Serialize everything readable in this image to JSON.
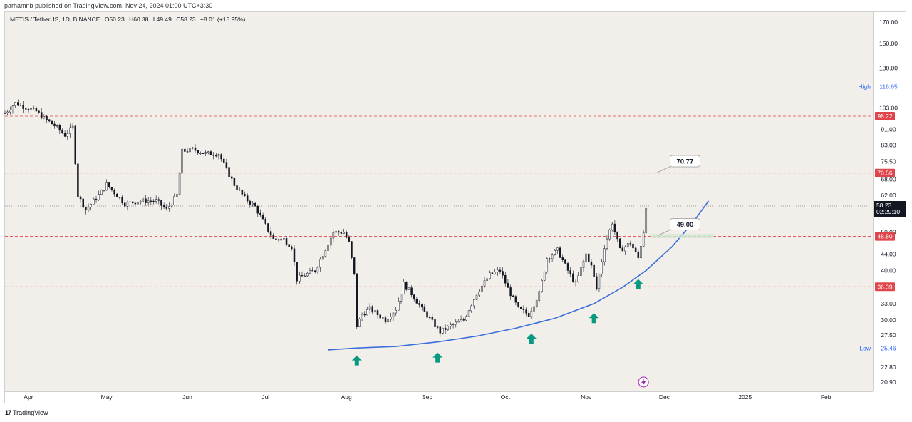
{
  "header": {
    "publisher": "parhamnb published on TradingView.com, Nov 24, 2024 01:00 UTC+3:30",
    "symbol": "METIS / TetherUS, 1D, BINANCE",
    "open": "O50.23",
    "high": "H60.38",
    "low": "L49.49",
    "close": "C58.23",
    "change": "+8.01 (+15.95%)"
  },
  "footer": {
    "brand": "TradingView",
    "brand_glyph": "17"
  },
  "colors": {
    "background": "#f2efea",
    "up": "#131722",
    "down": "#131722",
    "level_line": "#e0454b",
    "trend_curve": "#3a6fdb",
    "arrow": "#089981",
    "high_label": "#2962ff"
  },
  "chart_data": {
    "type": "candlestick",
    "title": "METIS / TetherUS, 1D, BINANCE",
    "y_scale": "log",
    "ylim": [
      19.8,
      180
    ],
    "y_ticks": [
      "170.00",
      "150.00",
      "130.00",
      "103.00",
      "91.00",
      "83.00",
      "75.50",
      "68.00",
      "62.00",
      "50.00",
      "44.00",
      "40.00",
      "33.00",
      "30.00",
      "27.50",
      "22.80",
      "20.90"
    ],
    "x_ticks": [
      {
        "label": "Apr",
        "date": "2024-04-01"
      },
      {
        "label": "May",
        "date": "2024-05-01"
      },
      {
        "label": "Jun",
        "date": "2024-06-01"
      },
      {
        "label": "Jul",
        "date": "2024-07-01"
      },
      {
        "label": "Aug",
        "date": "2024-08-01"
      },
      {
        "label": "Sep",
        "date": "2024-09-01"
      },
      {
        "label": "Oct",
        "date": "2024-10-01"
      },
      {
        "label": "Nov",
        "date": "2024-11-01"
      },
      {
        "label": "Dec",
        "date": "2024-12-01"
      },
      {
        "label": "2025",
        "date": "2025-01-01"
      },
      {
        "label": "Feb",
        "date": "2025-02-01"
      }
    ],
    "xlim": [
      "2024-03-23",
      "2025-02-19"
    ],
    "high_marker": {
      "label": "High",
      "value": "116.65"
    },
    "low_marker": {
      "label": "Low",
      "value": "25.46"
    },
    "horizontal_levels": [
      {
        "value": 98.22,
        "label": "98.22"
      },
      {
        "value": 70.56,
        "label": "70.56"
      },
      {
        "value": 48.8,
        "label": "48.80"
      },
      {
        "value": 36.39,
        "label": "36.39"
      }
    ],
    "current_price": {
      "value": 58.23,
      "label": "58.23",
      "countdown": "02:29:10"
    },
    "callouts": [
      {
        "label": "70.77",
        "value": 70.77,
        "date": "2024-12-01"
      },
      {
        "label": "49.00",
        "value": 49.0,
        "date": "2024-12-01"
      }
    ],
    "target_zone": {
      "from_date": "2024-11-26",
      "to_date": "2024-12-20",
      "value": 48.9
    },
    "support_curve": [
      {
        "date": "2024-07-25",
        "value": 25.2
      },
      {
        "date": "2024-08-04",
        "value": 25.46
      },
      {
        "date": "2024-08-20",
        "value": 25.7
      },
      {
        "date": "2024-09-05",
        "value": 26.4
      },
      {
        "date": "2024-09-20",
        "value": 27.3
      },
      {
        "date": "2024-10-05",
        "value": 28.6
      },
      {
        "date": "2024-10-20",
        "value": 30.3
      },
      {
        "date": "2024-11-04",
        "value": 33.0
      },
      {
        "date": "2024-11-15",
        "value": 36.3
      },
      {
        "date": "2024-11-24",
        "value": 40.0
      },
      {
        "date": "2024-12-04",
        "value": 46.0
      },
      {
        "date": "2024-12-12",
        "value": 53.0
      },
      {
        "date": "2024-12-18",
        "value": 60.0
      }
    ],
    "arrows": [
      {
        "date": "2024-08-05",
        "value": 23.6
      },
      {
        "date": "2024-09-05",
        "value": 24.0
      },
      {
        "date": "2024-10-11",
        "value": 26.8
      },
      {
        "date": "2024-11-04",
        "value": 30.2
      },
      {
        "date": "2024-11-21",
        "value": 36.8
      }
    ],
    "lightning_marker": {
      "date": "2024-11-23",
      "value": 20.9
    },
    "anchors": [
      {
        "date": "2024-03-23",
        "value": 100
      },
      {
        "date": "2024-03-27",
        "value": 106
      },
      {
        "date": "2024-03-30",
        "value": 104
      },
      {
        "date": "2024-04-04",
        "value": 101
      },
      {
        "date": "2024-04-07",
        "value": 97
      },
      {
        "date": "2024-04-11",
        "value": 93
      },
      {
        "date": "2024-04-15",
        "value": 88
      },
      {
        "date": "2024-04-18",
        "value": 92
      },
      {
        "date": "2024-04-20",
        "value": 62
      },
      {
        "date": "2024-04-23",
        "value": 57
      },
      {
        "date": "2024-04-28",
        "value": 62
      },
      {
        "date": "2024-05-01",
        "value": 66
      },
      {
        "date": "2024-05-05",
        "value": 62
      },
      {
        "date": "2024-05-08",
        "value": 59
      },
      {
        "date": "2024-05-14",
        "value": 60
      },
      {
        "date": "2024-05-20",
        "value": 60
      },
      {
        "date": "2024-05-24",
        "value": 57
      },
      {
        "date": "2024-05-28",
        "value": 62
      },
      {
        "date": "2024-05-30",
        "value": 80
      },
      {
        "date": "2024-06-03",
        "value": 81
      },
      {
        "date": "2024-06-08",
        "value": 79
      },
      {
        "date": "2024-06-13",
        "value": 79
      },
      {
        "date": "2024-06-16",
        "value": 72
      },
      {
        "date": "2024-06-19",
        "value": 66
      },
      {
        "date": "2024-06-23",
        "value": 61
      },
      {
        "date": "2024-06-27",
        "value": 58
      },
      {
        "date": "2024-07-01",
        "value": 52
      },
      {
        "date": "2024-07-04",
        "value": 48
      },
      {
        "date": "2024-07-08",
        "value": 48
      },
      {
        "date": "2024-07-11",
        "value": 46
      },
      {
        "date": "2024-07-13",
        "value": 38
      },
      {
        "date": "2024-07-16",
        "value": 39
      },
      {
        "date": "2024-07-20",
        "value": 40
      },
      {
        "date": "2024-07-23",
        "value": 44
      },
      {
        "date": "2024-07-27",
        "value": 50
      },
      {
        "date": "2024-07-31",
        "value": 50
      },
      {
        "date": "2024-08-02",
        "value": 47
      },
      {
        "date": "2024-08-04",
        "value": 39
      },
      {
        "date": "2024-08-05",
        "value": 29
      },
      {
        "date": "2024-08-07",
        "value": 31
      },
      {
        "date": "2024-08-10",
        "value": 32
      },
      {
        "date": "2024-08-16",
        "value": 30
      },
      {
        "date": "2024-08-20",
        "value": 32
      },
      {
        "date": "2024-08-23",
        "value": 37
      },
      {
        "date": "2024-08-26",
        "value": 35
      },
      {
        "date": "2024-08-30",
        "value": 32
      },
      {
        "date": "2024-09-06",
        "value": 28
      },
      {
        "date": "2024-09-10",
        "value": 29
      },
      {
        "date": "2024-09-15",
        "value": 30
      },
      {
        "date": "2024-09-20",
        "value": 35
      },
      {
        "date": "2024-09-25",
        "value": 39
      },
      {
        "date": "2024-09-29",
        "value": 40
      },
      {
        "date": "2024-10-02",
        "value": 36
      },
      {
        "date": "2024-10-06",
        "value": 32
      },
      {
        "date": "2024-10-10",
        "value": 31
      },
      {
        "date": "2024-10-14",
        "value": 35
      },
      {
        "date": "2024-10-17",
        "value": 43
      },
      {
        "date": "2024-10-21",
        "value": 45
      },
      {
        "date": "2024-10-25",
        "value": 40
      },
      {
        "date": "2024-10-28",
        "value": 37
      },
      {
        "date": "2024-11-01",
        "value": 44
      },
      {
        "date": "2024-11-03",
        "value": 41
      },
      {
        "date": "2024-11-05",
        "value": 36
      },
      {
        "date": "2024-11-08",
        "value": 46
      },
      {
        "date": "2024-11-11",
        "value": 53
      },
      {
        "date": "2024-11-14",
        "value": 45
      },
      {
        "date": "2024-11-18",
        "value": 47
      },
      {
        "date": "2024-11-21",
        "value": 43
      },
      {
        "date": "2024-11-23",
        "value": 50.23
      },
      {
        "date": "2024-11-24",
        "value": 58.23
      }
    ]
  }
}
